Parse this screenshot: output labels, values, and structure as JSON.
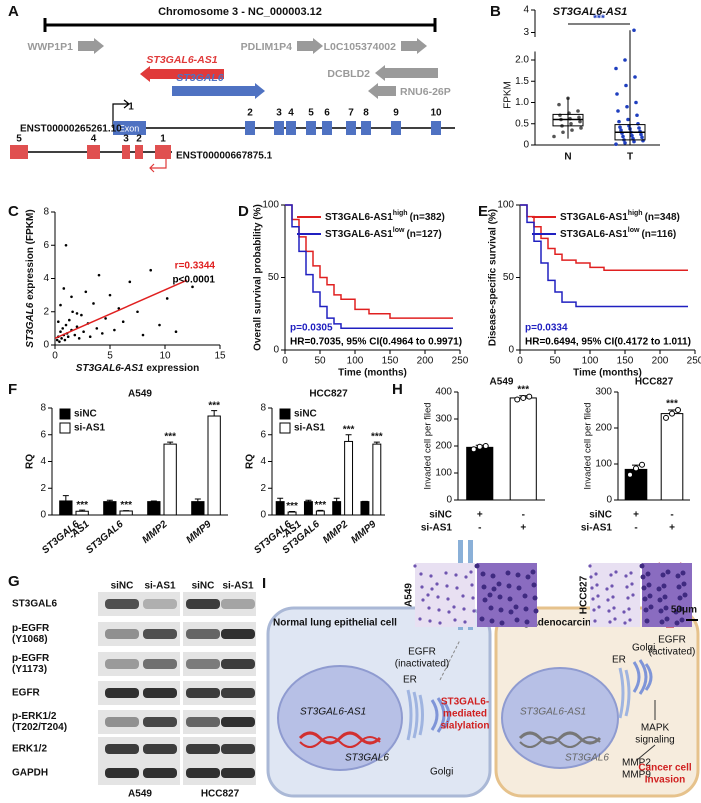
{
  "figure": {
    "panel_labels": [
      "A",
      "B",
      "C",
      "D",
      "E",
      "F",
      "G",
      "H",
      "I"
    ],
    "A": {
      "chromosome": "Chromosome 3 - NC_000003.12",
      "genes": [
        "WWP1P1",
        "ST3GAL6-AS1",
        "PDLIM1P4",
        "L0C105374002",
        "ST3GAL6",
        "DCBLD2",
        "RNU6-26P"
      ],
      "transcript_1": "ENST00000265261.10",
      "transcript_2": "ENST00000667875.1",
      "exon": "Exon",
      "exons_1": [
        "1",
        "2",
        "3",
        "4",
        "5",
        "6",
        "7",
        "8",
        "9",
        "10"
      ],
      "exons_2": [
        "5",
        "4",
        "3",
        "2",
        "1"
      ]
    },
    "G": {
      "lanes": [
        "siNC",
        "si-AS1",
        "siNC",
        "si-AS1"
      ],
      "cells": [
        "A549",
        "HCC827"
      ],
      "proteins": [
        [
          "ST3GAL6"
        ],
        [
          "p-EGFR",
          "(Y1068)"
        ],
        [
          "p-EGFR",
          "(Y1173)"
        ],
        [
          "EGFR"
        ],
        [
          "p-ERK1/2",
          "(T202/T204)"
        ],
        [
          "ERK1/2"
        ],
        [
          "GAPDH"
        ]
      ]
    },
    "H_images": {
      "cells": [
        "A549",
        "HCC827"
      ],
      "scale": "50μm"
    },
    "I": {
      "left_cell": "Normal lung epithelial cell",
      "right_cell": "Lung adenocarcinoma cell",
      "egfr_inactive": [
        "EGFR",
        "(inactivated)"
      ],
      "sialylation": [
        "ST3GAL6-",
        "mediated",
        "sialylation"
      ],
      "er": "ER",
      "golgi": "Golgi",
      "lnc": "ST3GAL6-AS1",
      "gene": "ST3GAL6",
      "phospho": "P",
      "egfr_active": [
        "EGFR",
        "(activated)"
      ],
      "mapk": [
        "MAPK",
        "signaling"
      ],
      "mmps": [
        "MMP2",
        "MMP9"
      ],
      "invasion": [
        "Cancer cell",
        "Invasion"
      ]
    }
  },
  "chart_data": [
    {
      "type": "box",
      "title": "ST3GAL6-AS1",
      "ylabel": "FPKM",
      "categories": [
        "N",
        "T"
      ],
      "annotation": "***",
      "colors": [
        "#555555",
        "#1f3fbf"
      ],
      "boxes": [
        {
          "min": 0.15,
          "q1": 0.45,
          "median": 0.6,
          "q3": 0.72,
          "max": 1.12
        },
        {
          "min": 0,
          "q1": 0.12,
          "median": 0.3,
          "q3": 0.48,
          "max": 3.1
        }
      ],
      "points": [
        [
          0.2,
          0.3,
          0.35,
          0.4,
          0.45,
          0.5,
          0.55,
          0.6,
          0.62,
          0.65,
          0.7,
          0.75,
          0.8,
          0.95,
          1.1
        ],
        [
          0.02,
          0.05,
          0.08,
          0.1,
          0.12,
          0.15,
          0.18,
          0.2,
          0.22,
          0.25,
          0.28,
          0.3,
          0.32,
          0.35,
          0.38,
          0.4,
          0.42,
          0.45,
          0.5,
          0.55,
          0.6,
          0.7,
          0.8,
          0.9,
          1.0,
          1.2,
          1.4,
          1.6,
          1.8,
          2.0,
          3.1
        ]
      ],
      "ylim": [
        0,
        4
      ],
      "axis_break": [
        2.2,
        2.8
      ],
      "yticks": [
        0,
        0.5,
        {
          "value": 1,
          "label": "1.0"
        },
        1.5,
        {
          "value": 2,
          "label": "2.0"
        },
        3,
        4
      ]
    },
    {
      "type": "scatter",
      "xlabel": [
        "ST3GAL6-AS1",
        " expression"
      ],
      "ylabel": [
        "ST3GAL6",
        " expression (FPKM)"
      ],
      "x": [
        0.2,
        0.3,
        0.4,
        0.5,
        0.6,
        0.7,
        0.8,
        0.9,
        1.0,
        1.1,
        1.2,
        1.3,
        1.5,
        1.6,
        1.8,
        2.0,
        2.2,
        2.4,
        2.6,
        2.8,
        3.0,
        3.2,
        3.5,
        3.8,
        4.0,
        4.3,
        4.6,
        5.0,
        5.4,
        5.8,
        6.2,
        6.8,
        7.5,
        8.0,
        8.7,
        9.5,
        10.2,
        11.0,
        12.5,
        0.5,
        1.0,
        1.5,
        2.0,
        0.3,
        0.8
      ],
      "y": [
        0.3,
        0.5,
        0.2,
        0.8,
        0.4,
        1.0,
        0.6,
        0.3,
        1.2,
        0.7,
        0.5,
        1.5,
        0.9,
        2.0,
        0.6,
        1.1,
        0.4,
        1.8,
        0.8,
        3.2,
        1.3,
        0.5,
        2.5,
        1.0,
        4.2,
        0.7,
        1.6,
        3.0,
        0.9,
        2.2,
        1.4,
        3.8,
        2.0,
        0.6,
        4.5,
        1.2,
        2.8,
        0.8,
        3.5,
        2.4,
        6.0,
        2.9,
        1.9,
        1.4,
        3.4
      ],
      "color": "#000000",
      "fit": {
        "x": [
          0,
          12
        ],
        "y": [
          0.4,
          3.9
        ],
        "color": "#e02020"
      },
      "annotations": [
        {
          "text": "r=0.3344",
          "color": "#e02020"
        },
        {
          "text": "p<0.0001",
          "color": "#000000"
        }
      ],
      "xlim": [
        0,
        15
      ],
      "xticks": [
        0,
        5,
        10,
        15
      ],
      "ylim": [
        0,
        8
      ],
      "yticks": [
        0,
        2,
        4,
        6,
        8
      ]
    },
    {
      "type": "line",
      "xlabel": "Time (months)",
      "ylabel": "Overall survival probability (%)",
      "series": [
        {
          "name": "ST3GAL6-AS1",
          "superscript": "high",
          "count": "(n=382)",
          "color": "#e02020",
          "x": [
            0,
            10,
            20,
            30,
            40,
            50,
            60,
            70,
            80,
            100,
            120,
            150,
            200,
            240
          ],
          "y": [
            100,
            90,
            78,
            68,
            58,
            50,
            45,
            38,
            35,
            28,
            25,
            22,
            22,
            22
          ]
        },
        {
          "name": "ST3GAL6-AS1",
          "superscript": "low",
          "count": "(n=127)",
          "color": "#2020c0",
          "x": [
            0,
            10,
            20,
            30,
            40,
            50,
            60,
            70,
            80,
            100,
            150,
            200,
            240
          ],
          "y": [
            100,
            85,
            68,
            52,
            40,
            30,
            22,
            18,
            15,
            15,
            15,
            15,
            15
          ]
        }
      ],
      "annotations": [
        {
          "text": "p=0.0305",
          "color": "#2020c0"
        },
        {
          "text": "HR=0.7035, 95% CI(0.4964 to 0.9971)",
          "color": "#000000"
        }
      ],
      "xlim": [
        0,
        250
      ],
      "xticks": [
        0,
        50,
        100,
        150,
        200,
        250
      ],
      "ylim": [
        0,
        100
      ],
      "yticks": [
        0,
        50,
        100
      ]
    },
    {
      "type": "line",
      "xlabel": "Time (months)",
      "ylabel": "Disease-specific survival (%)",
      "series": [
        {
          "name": "ST3GAL6-AS1",
          "superscript": "high",
          "count": "(n=348)",
          "color": "#e02020",
          "x": [
            0,
            10,
            20,
            30,
            40,
            50,
            60,
            80,
            100,
            120,
            150,
            200,
            240
          ],
          "y": [
            100,
            92,
            85,
            77,
            70,
            66,
            62,
            60,
            57,
            55,
            55,
            55,
            55
          ]
        },
        {
          "name": "ST3GAL6-AS1",
          "superscript": "low",
          "count": "(n=116)",
          "color": "#2020c0",
          "x": [
            0,
            10,
            20,
            30,
            40,
            50,
            60,
            80,
            100,
            150,
            200,
            240
          ],
          "y": [
            100,
            88,
            75,
            60,
            48,
            40,
            33,
            30,
            30,
            30,
            30,
            30
          ]
        }
      ],
      "annotations": [
        {
          "text": "p=0.0334",
          "color": "#2020c0"
        },
        {
          "text": "HR=0.6494, 95% CI(0.4172 to 1.011)",
          "color": "#000000"
        }
      ],
      "xlim": [
        0,
        250
      ],
      "xticks": [
        0,
        50,
        100,
        150,
        200,
        250
      ],
      "ylim": [
        0,
        100
      ],
      "yticks": [
        0,
        50,
        100
      ]
    },
    {
      "type": "bar",
      "title": "A549",
      "ylabel": "RQ",
      "categories": [
        [
          "ST3GAL6",
          "-AS1"
        ],
        [
          "ST3GAL6"
        ],
        [
          "MMP2"
        ],
        [
          "MMP9"
        ]
      ],
      "series": [
        {
          "name": "siNC",
          "color": "#000000",
          "values": [
            1.05,
            1,
            1,
            1
          ],
          "errors": [
            0.4,
            0.1,
            0.05,
            0.2
          ]
        },
        {
          "name": "si-AS1",
          "color": "#ffffff",
          "values": [
            0.28,
            0.3,
            5.3,
            7.4
          ],
          "errors": [
            0.08,
            0.03,
            0.15,
            0.4
          ],
          "significance": [
            "***",
            "***",
            "***",
            "***"
          ]
        }
      ],
      "ylim": [
        0,
        8
      ],
      "yticks": [
        0,
        2,
        4,
        6,
        8
      ]
    },
    {
      "type": "bar",
      "title": "HCC827",
      "ylabel": "RQ",
      "categories": [
        [
          "ST3GAL6",
          "-AS1"
        ],
        [
          "ST3GAL6"
        ],
        [
          "MMP2"
        ],
        [
          "MMP9"
        ]
      ],
      "series": [
        {
          "name": "siNC",
          "color": "#000000",
          "values": [
            1,
            1,
            1,
            1
          ],
          "errors": [
            0.25,
            0.1,
            0.25,
            0.02
          ]
        },
        {
          "name": "si-AS1",
          "color": "#ffffff",
          "values": [
            0.22,
            0.3,
            5.5,
            5.3
          ],
          "errors": [
            0.04,
            0.05,
            0.5,
            0.15
          ],
          "significance": [
            "***",
            "***",
            "***",
            "***"
          ]
        }
      ],
      "ylim": [
        0,
        8
      ],
      "yticks": [
        0,
        2,
        4,
        6,
        8
      ]
    },
    {
      "type": "column",
      "title": "A549",
      "ylabel": "Invaded cell per filed",
      "values": [
        195,
        378
      ],
      "errors": [
        8,
        8
      ],
      "colors": [
        "#000000",
        "#ffffff"
      ],
      "significance": [
        null,
        "***"
      ],
      "points": [
        [
          188,
          197,
          200
        ],
        [
          372,
          378,
          383
        ]
      ],
      "conditions": [
        {
          "label": "siNC",
          "marks": [
            "+",
            "-"
          ]
        },
        {
          "label": "si-AS1",
          "marks": [
            "-",
            "+"
          ]
        }
      ],
      "ylim": [
        0,
        400
      ],
      "yticks": [
        0,
        100,
        200,
        300,
        400
      ]
    },
    {
      "type": "column",
      "title": "HCC827",
      "ylabel": "Invaded cell per filed",
      "values": [
        85,
        240
      ],
      "errors": [
        12,
        10
      ],
      "colors": [
        "#000000",
        "#ffffff"
      ],
      "significance": [
        null,
        "***"
      ],
      "points": [
        [
          70,
          88,
          98
        ],
        [
          228,
          240,
          250
        ]
      ],
      "conditions": [
        {
          "label": "siNC",
          "marks": [
            "+",
            "-"
          ]
        },
        {
          "label": "si-AS1",
          "marks": [
            "-",
            "+"
          ]
        }
      ],
      "ylim": [
        0,
        300
      ],
      "yticks": [
        0,
        100,
        200,
        300
      ]
    }
  ]
}
